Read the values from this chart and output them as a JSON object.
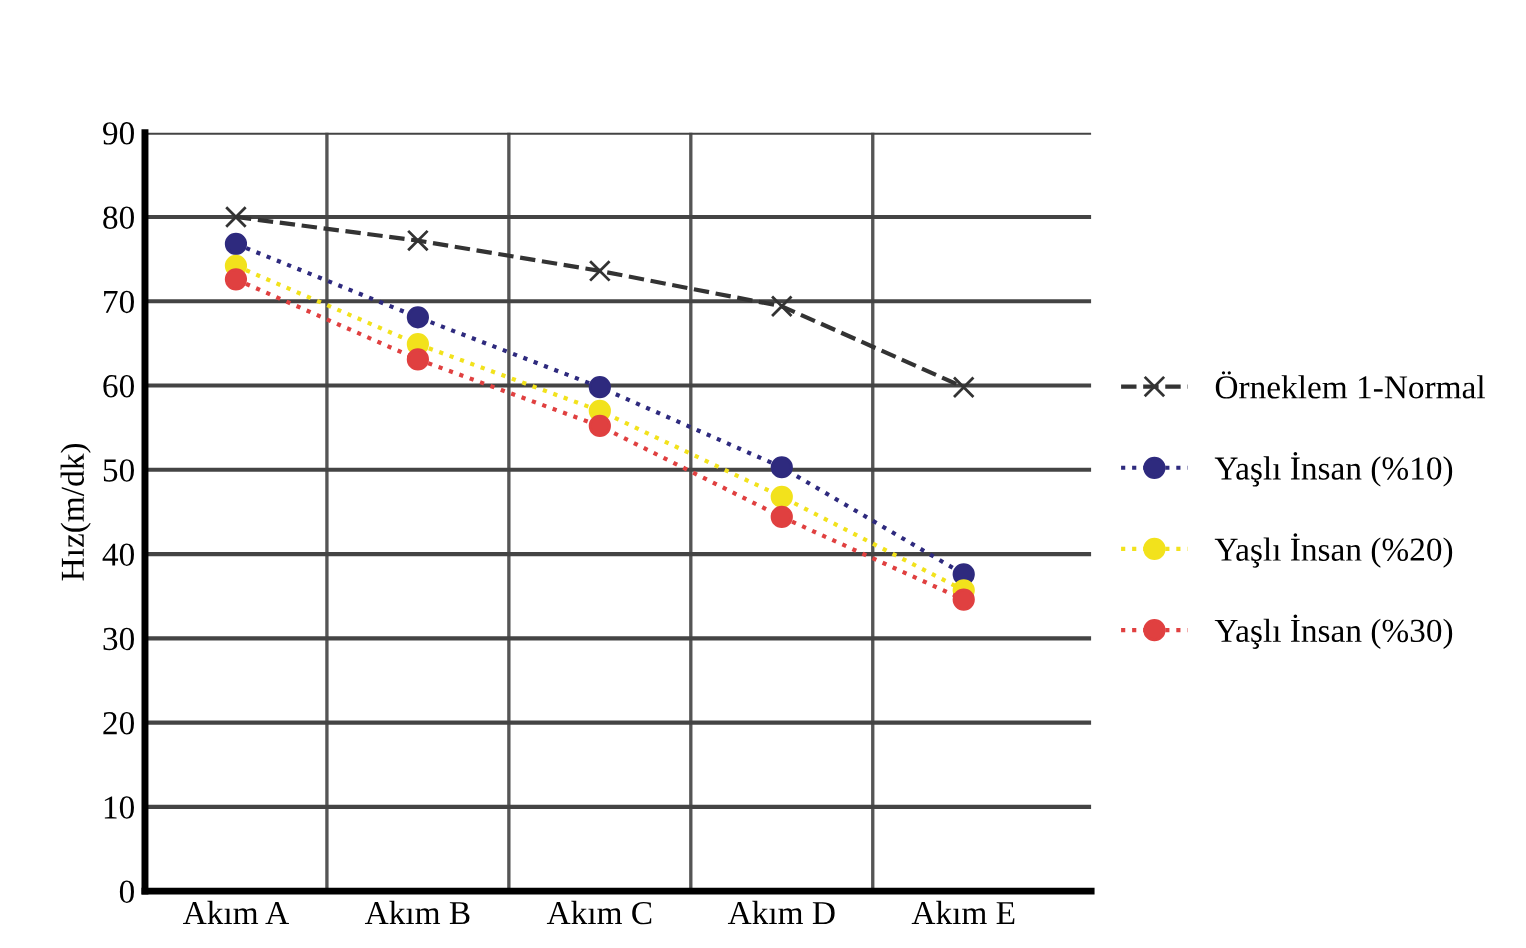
{
  "chart_data": {
    "type": "line",
    "ylabel": "Hız(m/dk)",
    "categories": [
      "Akım A",
      "Akım B",
      "Akım C",
      "Akım D",
      "Akım E"
    ],
    "series": [
      {
        "name": "Örneklem 1-Normal",
        "color": "#333333",
        "marker": "cross",
        "line_style": "dashed",
        "values": [
          80,
          77.2,
          73.6,
          69.4,
          59.8
        ]
      },
      {
        "name": "Yaşlı İnsan (%10)",
        "color": "#2e2a7e",
        "marker": "circle",
        "line_style": "dotted",
        "values": [
          76.8,
          68.1,
          59.8,
          50.3,
          37.6
        ]
      },
      {
        "name": "Yaşlı İnsan (%20)",
        "color": "#f2e21c",
        "marker": "circle",
        "line_style": "dotted",
        "values": [
          74.2,
          64.9,
          57.0,
          46.8,
          35.7
        ]
      },
      {
        "name": "Yaşlı İnsan (%30)",
        "color": "#e04040",
        "marker": "circle",
        "line_style": "dotted",
        "values": [
          72.6,
          63.1,
          55.2,
          44.4,
          34.6
        ]
      }
    ],
    "ylim": [
      0,
      90
    ],
    "yticks": [
      0,
      10,
      20,
      30,
      40,
      50,
      60,
      70,
      80,
      90
    ],
    "grid": true,
    "legend": "right"
  }
}
